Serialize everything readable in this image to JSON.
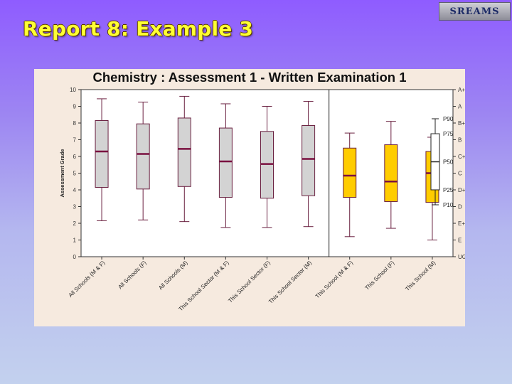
{
  "slide": {
    "title": "Report 8: Example 3",
    "logo_text": "SREAMS"
  },
  "colors": {
    "all_boxes": "#d3d3d3",
    "school_boxes": "#ffcc00",
    "median": "#7a1040",
    "whisker": "#6a2040"
  },
  "chart_data": {
    "type": "box",
    "title": "Chemistry : Assessment 1 - Written Examination 1",
    "ylabel": "Assessment Grade",
    "ylim": [
      0,
      10
    ],
    "y_ticks": [
      0,
      1,
      2,
      3,
      4,
      5,
      6,
      7,
      8,
      9,
      10
    ],
    "grade_labels": [
      "UG",
      "E",
      "E+",
      "D",
      "D+",
      "C",
      "C+",
      "B",
      "B+",
      "A",
      "A+"
    ],
    "categories": [
      "All Schools (M & F)",
      "All Schools (F)",
      "All Schools (M)",
      "This School Sector (M & F)",
      "This School Sector (F)",
      "This School Sector (M)",
      "This School (M & F)",
      "This School (F)",
      "This School (M)"
    ],
    "boxes": [
      {
        "p10": 2.15,
        "p25": 4.15,
        "p50": 6.3,
        "p75": 8.15,
        "p90": 9.45,
        "group": "all"
      },
      {
        "p10": 2.2,
        "p25": 4.05,
        "p50": 6.15,
        "p75": 7.95,
        "p90": 9.25,
        "group": "all"
      },
      {
        "p10": 2.1,
        "p25": 4.2,
        "p50": 6.45,
        "p75": 8.3,
        "p90": 9.6,
        "group": "all"
      },
      {
        "p10": 1.75,
        "p25": 3.55,
        "p50": 5.7,
        "p75": 7.7,
        "p90": 9.15,
        "group": "all"
      },
      {
        "p10": 1.75,
        "p25": 3.5,
        "p50": 5.55,
        "p75": 7.5,
        "p90": 9.0,
        "group": "all"
      },
      {
        "p10": 1.8,
        "p25": 3.65,
        "p50": 5.85,
        "p75": 7.85,
        "p90": 9.3,
        "group": "all"
      },
      {
        "p10": 1.2,
        "p25": 3.55,
        "p50": 4.85,
        "p75": 6.5,
        "p90": 7.4,
        "group": "school"
      },
      {
        "p10": 1.7,
        "p25": 3.3,
        "p50": 4.5,
        "p75": 6.7,
        "p90": 8.1,
        "group": "school"
      },
      {
        "p10": 1.0,
        "p25": 3.25,
        "p50": 5.0,
        "p75": 6.3,
        "p90": 7.15,
        "group": "school"
      }
    ],
    "legend": {
      "placement": "right",
      "labels": [
        "P90",
        "P75",
        "P50",
        "P25",
        "P10"
      ]
    }
  }
}
